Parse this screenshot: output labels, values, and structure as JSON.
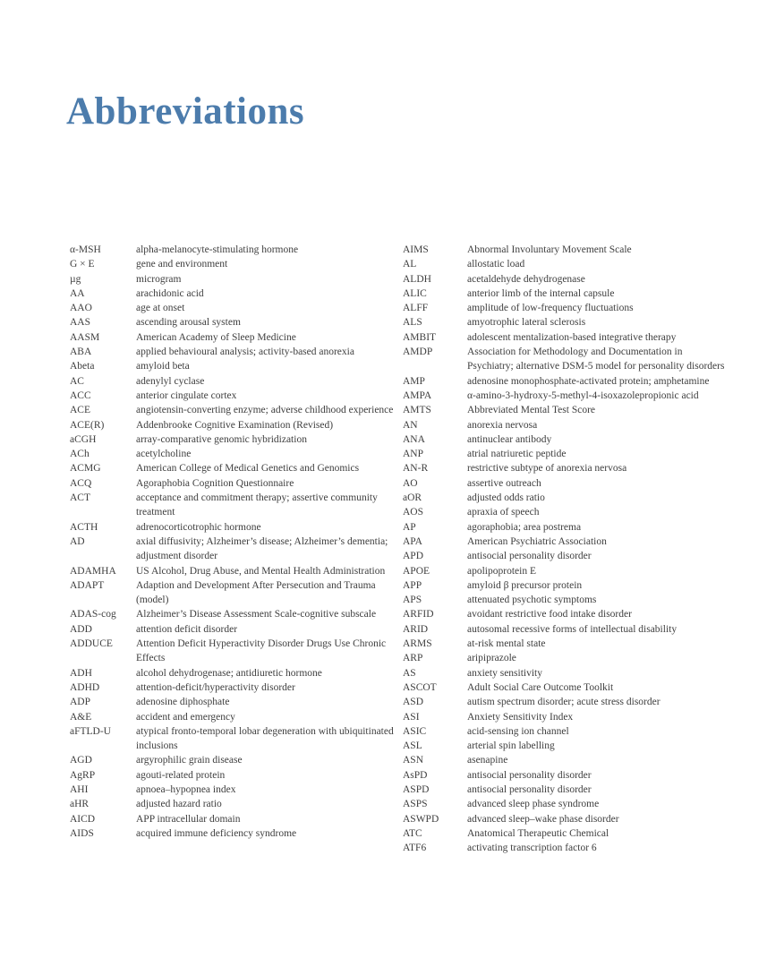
{
  "page": {
    "title": "Abbreviations"
  },
  "colors": {
    "title": "#4C7CAC",
    "body_text": "#3E3E3E",
    "background": "#FFFFFF"
  },
  "abbreviations": {
    "left": [
      {
        "abbr": "α-MSH",
        "def": "alpha-melanocyte-stimulating hormone"
      },
      {
        "abbr": "G × E",
        "def": "gene and environment"
      },
      {
        "abbr": "µg",
        "def": "microgram"
      },
      {
        "abbr": "AA",
        "def": "arachidonic acid"
      },
      {
        "abbr": "AAO",
        "def": "age at onset"
      },
      {
        "abbr": "AAS",
        "def": "ascending arousal system"
      },
      {
        "abbr": "AASM",
        "def": "American Academy of Sleep Medicine"
      },
      {
        "abbr": "ABA",
        "def": "applied behavioural analysis; activity-based anorexia"
      },
      {
        "abbr": "Abeta",
        "def": "amyloid beta"
      },
      {
        "abbr": "AC",
        "def": "adenylyl cyclase"
      },
      {
        "abbr": "ACC",
        "def": "anterior cingulate cortex"
      },
      {
        "abbr": "ACE",
        "def": "angiotensin-converting enzyme; adverse childhood experience"
      },
      {
        "abbr": "ACE(R)",
        "def": "Addenbrooke Cognitive Examination (Revised)"
      },
      {
        "abbr": "aCGH",
        "def": "array-comparative genomic hybridization"
      },
      {
        "abbr": "ACh",
        "def": "acetylcholine"
      },
      {
        "abbr": "ACMG",
        "def": "American College of Medical Genetics and Genomics"
      },
      {
        "abbr": "ACQ",
        "def": "Agoraphobia Cognition Questionnaire"
      },
      {
        "abbr": "ACT",
        "def": "acceptance and commitment therapy; assertive community treatment"
      },
      {
        "abbr": "ACTH",
        "def": "adrenocorticotrophic hormone"
      },
      {
        "abbr": "AD",
        "def": "axial diffusivity; Alzheimer’s disease; Alzheimer’s dementia; adjustment disorder"
      },
      {
        "abbr": "ADAMHA",
        "def": "US Alcohol, Drug Abuse, and Mental Health Administration"
      },
      {
        "abbr": "ADAPT",
        "def": "Adaption and Development After Persecution and Trauma (model)"
      },
      {
        "abbr": "ADAS-cog",
        "def": "Alzheimer’s Disease Assessment Scale-cognitive subscale"
      },
      {
        "abbr": "ADD",
        "def": "attention deficit disorder"
      },
      {
        "abbr": "ADDUCE",
        "def": "Attention Deficit Hyperactivity Disorder Drugs Use Chronic Effects"
      },
      {
        "abbr": "ADH",
        "def": "alcohol dehydrogenase; antidiuretic hormone"
      },
      {
        "abbr": "ADHD",
        "def": "attention-deficit/hyperactivity disorder"
      },
      {
        "abbr": "ADP",
        "def": "adenosine diphosphate"
      },
      {
        "abbr": "A&E",
        "def": "accident and emergency"
      },
      {
        "abbr": "aFTLD-U",
        "def": "atypical fronto-temporal lobar degeneration with ubiquitinated inclusions"
      },
      {
        "abbr": "AGD",
        "def": "argyrophilic grain disease"
      },
      {
        "abbr": "AgRP",
        "def": "agouti-related protein"
      },
      {
        "abbr": "AHI",
        "def": "apnoea–hypopnea index"
      },
      {
        "abbr": "aHR",
        "def": "adjusted hazard ratio"
      },
      {
        "abbr": "AICD",
        "def": "APP intracellular domain"
      },
      {
        "abbr": "AIDS",
        "def": "acquired immune deficiency syndrome"
      }
    ],
    "right": [
      {
        "abbr": "AIMS",
        "def": "Abnormal Involuntary Movement Scale"
      },
      {
        "abbr": "AL",
        "def": "allostatic load"
      },
      {
        "abbr": "ALDH",
        "def": "acetaldehyde dehydrogenase"
      },
      {
        "abbr": "ALIC",
        "def": "anterior limb of the internal capsule"
      },
      {
        "abbr": "ALFF",
        "def": "amplitude of low-frequency fluctuations"
      },
      {
        "abbr": "ALS",
        "def": "amyotrophic lateral sclerosis"
      },
      {
        "abbr": "AMBIT",
        "def": "adolescent mentalization-based integrative therapy"
      },
      {
        "abbr": "AMDP",
        "def": "Association for Methodology and Documentation in Psychiatry; alternative DSM-5 model for personality disorders"
      },
      {
        "abbr": "AMP",
        "def": "adenosine monophosphate-activated protein; amphetamine"
      },
      {
        "abbr": "AMPA",
        "def": "α-amino-3-hydroxy-5-methyl-4-isoxazolepropionic acid"
      },
      {
        "abbr": "AMTS",
        "def": "Abbreviated Mental Test Score"
      },
      {
        "abbr": "AN",
        "def": "anorexia nervosa"
      },
      {
        "abbr": "ANA",
        "def": "antinuclear antibody"
      },
      {
        "abbr": "ANP",
        "def": "atrial natriuretic peptide"
      },
      {
        "abbr": "AN-R",
        "def": "restrictive subtype of anorexia nervosa"
      },
      {
        "abbr": "AO",
        "def": "assertive outreach"
      },
      {
        "abbr": "aOR",
        "def": "adjusted odds ratio"
      },
      {
        "abbr": "AOS",
        "def": "apraxia of speech"
      },
      {
        "abbr": "AP",
        "def": "agoraphobia; area postrema"
      },
      {
        "abbr": "APA",
        "def": "American Psychiatric Association"
      },
      {
        "abbr": "APD",
        "def": "antisocial personality disorder"
      },
      {
        "abbr": "APOE",
        "def": "apolipoprotein E"
      },
      {
        "abbr": "APP",
        "def": "amyloid β precursor protein"
      },
      {
        "abbr": "APS",
        "def": "attenuated psychotic symptoms"
      },
      {
        "abbr": "ARFID",
        "def": "avoidant restrictive food intake disorder"
      },
      {
        "abbr": "ARID",
        "def": "autosomal recessive forms of intellectual disability"
      },
      {
        "abbr": "ARMS",
        "def": "at-risk mental state"
      },
      {
        "abbr": "ARP",
        "def": "aripiprazole"
      },
      {
        "abbr": "AS",
        "def": "anxiety sensitivity"
      },
      {
        "abbr": "ASCOT",
        "def": "Adult Social Care Outcome Toolkit"
      },
      {
        "abbr": "ASD",
        "def": "autism spectrum disorder; acute stress disorder"
      },
      {
        "abbr": "ASI",
        "def": "Anxiety Sensitivity Index"
      },
      {
        "abbr": "ASIC",
        "def": "acid-sensing ion channel"
      },
      {
        "abbr": "ASL",
        "def": "arterial spin labelling"
      },
      {
        "abbr": "ASN",
        "def": "asenapine"
      },
      {
        "abbr": "AsPD",
        "def": "antisocial personality disorder"
      },
      {
        "abbr": "ASPD",
        "def": "antisocial personality disorder"
      },
      {
        "abbr": "ASPS",
        "def": "advanced sleep phase syndrome"
      },
      {
        "abbr": "ASWPD",
        "def": "advanced sleep–wake phase disorder"
      },
      {
        "abbr": "ATC",
        "def": "Anatomical Therapeutic Chemical"
      },
      {
        "abbr": "ATF6",
        "def": "activating transcription factor 6"
      }
    ]
  }
}
